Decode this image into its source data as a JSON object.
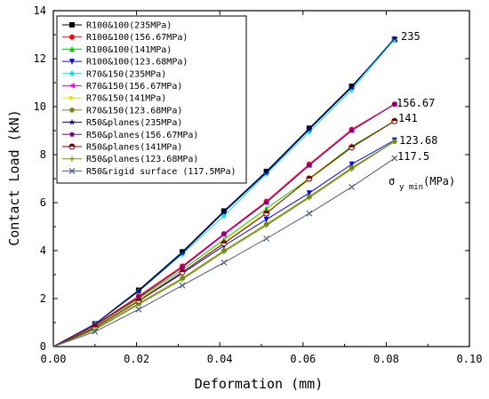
{
  "chart_data": {
    "type": "line",
    "xlabel": "Deformation (mm)",
    "ylabel": "Contact Load (kN)",
    "xlim": [
      0.0,
      0.1
    ],
    "ylim": [
      0,
      14
    ],
    "x_ticks": [
      "0.00",
      "0.02",
      "0.04",
      "0.06",
      "0.08",
      "0.10"
    ],
    "y_ticks": [
      "0",
      "2",
      "4",
      "6",
      "8",
      "10",
      "12",
      "14"
    ],
    "x": [
      0,
      0.01,
      0.0205,
      0.031,
      0.041,
      0.0512,
      0.0615,
      0.0717,
      0.082
    ],
    "series": [
      {
        "name": "R100&100(235MPa)",
        "color": "#000000",
        "marker": "square",
        "values": [
          0,
          0.95,
          2.35,
          3.95,
          5.65,
          7.3,
          9.1,
          10.85,
          12.8
        ]
      },
      {
        "name": "R100&100(156.67MPa)",
        "color": "#ff0000",
        "marker": "circle",
        "values": [
          0,
          0.9,
          2.1,
          3.35,
          4.7,
          6.05,
          7.6,
          9.05,
          10.1
        ]
      },
      {
        "name": "R100&100(141MPa)",
        "color": "#00cc00",
        "marker": "triangle-up",
        "values": [
          0,
          0.85,
          2.0,
          3.2,
          4.45,
          5.75,
          7.0,
          8.35,
          9.4
        ]
      },
      {
        "name": "R100&100(123.68MPa)",
        "color": "#0000ff",
        "marker": "triangle-down",
        "values": [
          0,
          0.8,
          1.9,
          3.05,
          4.2,
          5.3,
          6.4,
          7.6,
          8.6
        ]
      },
      {
        "name": "R70&150(235MPa)",
        "color": "#00e5e5",
        "marker": "diamond",
        "values": [
          0,
          0.95,
          2.3,
          3.85,
          5.45,
          7.2,
          8.95,
          10.7,
          12.8
        ]
      },
      {
        "name": "R70&150(156.67MPa)",
        "color": "#ff00ff",
        "marker": "triangle-left",
        "values": [
          0,
          0.88,
          2.05,
          3.3,
          4.65,
          6.0,
          7.55,
          9.0,
          10.1
        ]
      },
      {
        "name": "R70&150(141MPa)",
        "color": "#e6e600",
        "marker": "triangle-right",
        "values": [
          0,
          0.82,
          1.95,
          3.1,
          4.35,
          5.6,
          6.95,
          8.3,
          9.4
        ]
      },
      {
        "name": "R70&150(123.68MPa)",
        "color": "#808000",
        "marker": "hexagon",
        "values": [
          0,
          0.75,
          1.8,
          2.85,
          4.0,
          5.1,
          6.25,
          7.45,
          8.55
        ]
      },
      {
        "name": "R50&planes(235MPa)",
        "color": "#000080",
        "marker": "star",
        "values": [
          0,
          0.93,
          2.3,
          3.9,
          5.6,
          7.25,
          9.05,
          10.8,
          12.85
        ]
      },
      {
        "name": "R50&planes(156.67MPa)",
        "color": "#800080",
        "marker": "pentagon",
        "values": [
          0,
          0.9,
          2.05,
          3.3,
          4.7,
          6.0,
          7.55,
          9.0,
          10.1
        ]
      },
      {
        "name": "R50&planes(141MPa)",
        "color": "#800000",
        "marker": "half-circle",
        "values": [
          0,
          0.8,
          1.9,
          3.1,
          4.3,
          5.55,
          7.0,
          8.3,
          9.4
        ]
      },
      {
        "name": "R50&planes(123.68MPa)",
        "color": "#669900",
        "marker": "plus",
        "values": [
          0,
          0.7,
          1.75,
          2.8,
          3.95,
          5.05,
          6.2,
          7.4,
          8.55
        ]
      },
      {
        "name": "R50&rigid surface (117.5MPa)",
        "color": "#4d5b7a",
        "marker": "x",
        "values": [
          0,
          0.62,
          1.55,
          2.55,
          3.5,
          4.5,
          5.55,
          6.65,
          7.85
        ]
      }
    ],
    "annotations": [
      "235",
      "156.67",
      "141",
      "123.68",
      "117.5"
    ],
    "sigma_label": "σ",
    "sigma_sub": "y min",
    "sigma_unit": "(MPa)",
    "legend_position": "top-left",
    "grid": false
  }
}
